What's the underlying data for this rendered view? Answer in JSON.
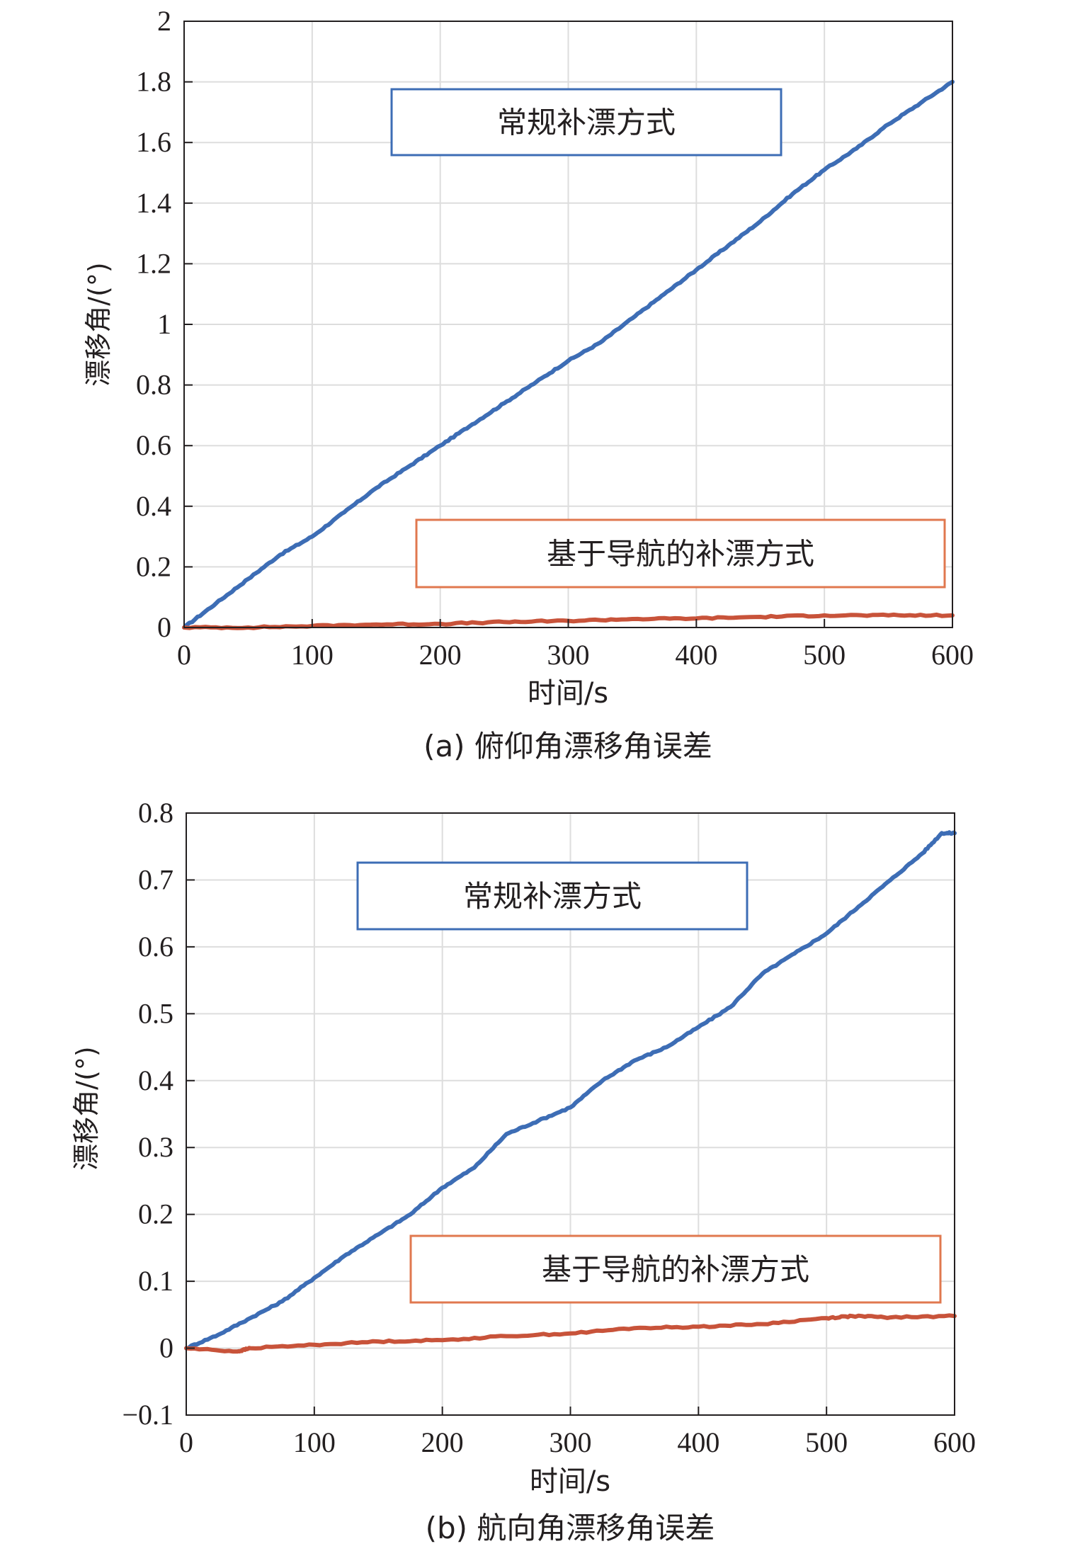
{
  "chart_data": [
    {
      "type": "line",
      "title": "(a) 俯仰角漂移角误差",
      "xlabel": "时间/s",
      "ylabel": "漂移角/(°)",
      "xlim": [
        0,
        600
      ],
      "ylim": [
        0,
        2
      ],
      "xticks": [
        0,
        100,
        200,
        300,
        400,
        500,
        600
      ],
      "yticks": [
        0,
        0.2,
        0.4,
        0.6,
        0.8,
        1,
        1.2,
        1.4,
        1.6,
        1.8,
        2
      ],
      "xtick_labels": [
        "0",
        "100",
        "200",
        "300",
        "400",
        "500",
        "600"
      ],
      "ytick_labels": [
        "0",
        "0.2",
        "0.4",
        "0.6",
        "0.8",
        "1",
        "1.2",
        "1.4",
        "1.6",
        "1.8",
        "2"
      ],
      "grid": true,
      "series": [
        {
          "name": "常规补漂方式",
          "color": "#3d6db5",
          "x": [
            0,
            25,
            50,
            75,
            100,
            125,
            150,
            175,
            200,
            225,
            250,
            275,
            300,
            325,
            350,
            375,
            400,
            425,
            450,
            475,
            500,
            525,
            550,
            575,
            600
          ],
          "y": [
            0,
            0.08,
            0.16,
            0.24,
            0.3,
            0.38,
            0.46,
            0.53,
            0.6,
            0.67,
            0.74,
            0.81,
            0.88,
            0.94,
            1.02,
            1.1,
            1.18,
            1.26,
            1.34,
            1.43,
            1.51,
            1.58,
            1.66,
            1.73,
            1.8
          ]
        },
        {
          "name": "基于导航的补漂方式",
          "color": "#c8533a",
          "x": [
            0,
            50,
            100,
            150,
            200,
            250,
            300,
            350,
            400,
            450,
            500,
            550,
            600
          ],
          "y": [
            0,
            0.0,
            0.005,
            0.01,
            0.012,
            0.018,
            0.022,
            0.028,
            0.03,
            0.035,
            0.04,
            0.04,
            0.04
          ]
        }
      ],
      "annotations": [
        {
          "text": "常规补漂方式",
          "series": 0,
          "border_color": "#3d6db5"
        },
        {
          "text": "基于导航的补漂方式",
          "series": 1,
          "border_color": "#e0784f"
        }
      ]
    },
    {
      "type": "line",
      "title": "(b) 航向角漂移角误差",
      "xlabel": "时间/s",
      "ylabel": "漂移角/(°)",
      "xlim": [
        0,
        600
      ],
      "ylim": [
        -0.1,
        0.8
      ],
      "xticks": [
        0,
        100,
        200,
        300,
        400,
        500,
        600
      ],
      "yticks": [
        -0.1,
        0,
        0.1,
        0.2,
        0.3,
        0.4,
        0.5,
        0.6,
        0.7,
        0.8
      ],
      "xtick_labels": [
        "0",
        "100",
        "200",
        "300",
        "400",
        "500",
        "600"
      ],
      "ytick_labels": [
        "−0.1",
        "0",
        "0.1",
        "0.2",
        "0.3",
        "0.4",
        "0.5",
        "0.6",
        "0.7",
        "0.8"
      ],
      "grid": true,
      "series": [
        {
          "name": "常规补漂方式",
          "color": "#3d6db5",
          "x": [
            0,
            25,
            50,
            75,
            100,
            125,
            150,
            175,
            200,
            225,
            250,
            275,
            300,
            325,
            350,
            375,
            400,
            425,
            450,
            475,
            500,
            525,
            550,
            575,
            590,
            600
          ],
          "y": [
            0,
            0.02,
            0.045,
            0.07,
            0.105,
            0.14,
            0.17,
            0.2,
            0.24,
            0.27,
            0.32,
            0.34,
            0.36,
            0.4,
            0.43,
            0.45,
            0.48,
            0.51,
            0.56,
            0.59,
            0.62,
            0.66,
            0.7,
            0.74,
            0.77,
            0.77
          ]
        },
        {
          "name": "基于导航的补漂方式",
          "color": "#c8533a",
          "x": [
            0,
            40,
            50,
            100,
            150,
            200,
            250,
            300,
            350,
            400,
            450,
            500,
            520,
            550,
            600
          ],
          "y": [
            0,
            -0.005,
            0.0,
            0.005,
            0.01,
            0.012,
            0.018,
            0.022,
            0.03,
            0.032,
            0.036,
            0.045,
            0.048,
            0.046,
            0.048
          ]
        }
      ],
      "annotations": [
        {
          "text": "常规补漂方式",
          "series": 0,
          "border_color": "#3d6db5"
        },
        {
          "text": "基于导航的补漂方式",
          "series": 1,
          "border_color": "#e0784f"
        }
      ]
    }
  ]
}
